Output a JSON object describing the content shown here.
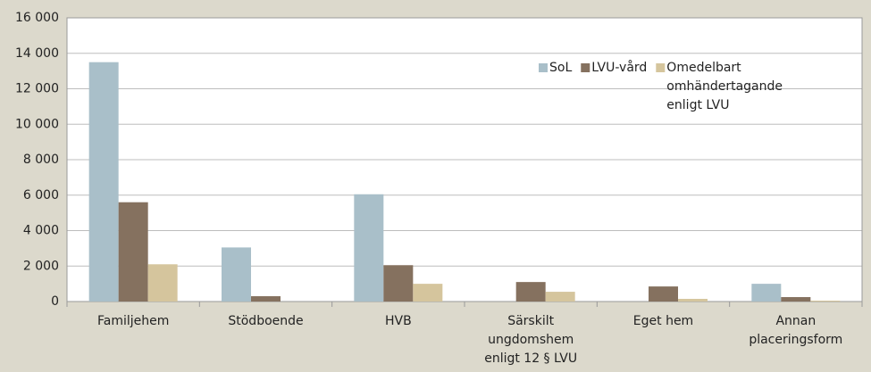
{
  "chart_data": {
    "type": "bar",
    "categories": [
      "Familjehem",
      "Stödboende",
      "HVB",
      "Särskilt ungdomshem enligt 12 § LVU",
      "Eget hem",
      "Annan placeringsform"
    ],
    "series": [
      {
        "name": "SoL",
        "color": "#a9bfc9",
        "values": [
          13500,
          3050,
          6050,
          0,
          0,
          1000
        ]
      },
      {
        "name": "LVU-vård",
        "color": "#85715f",
        "values": [
          5600,
          300,
          2050,
          1100,
          850,
          250
        ]
      },
      {
        "name": "Omedelbart omhändertagande enligt LVU",
        "color": "#d5c59d",
        "values": [
          2100,
          0,
          1000,
          550,
          150,
          50
        ]
      }
    ],
    "ylim": [
      0,
      16000
    ],
    "yticks": [
      0,
      {
        "value": 2000,
        "label": "2 000"
      },
      {
        "value": 4000,
        "label": "4 000"
      },
      {
        "value": 6000,
        "label": "6 000"
      },
      {
        "value": 8000,
        "label": "8 000"
      },
      {
        "value": 10000,
        "label": "10 000"
      },
      {
        "value": 12000,
        "label": "12 000"
      },
      {
        "value": 14000,
        "label": "14 000"
      },
      {
        "value": 16000,
        "label": "16 000"
      }
    ],
    "grid": true,
    "legend": "top-right"
  }
}
